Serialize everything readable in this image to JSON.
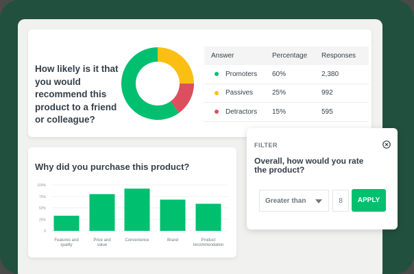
{
  "colors": {
    "background": "#21503e",
    "frame": "#f1f1f0",
    "brand_green": "#00bf6f",
    "promoters": "#00bf6f",
    "passives": "#fbbf13",
    "detractors": "#dc4f5e",
    "text_dark": "#333e48",
    "text_muted": "#6b787f"
  },
  "nps": {
    "question": "How likely is it that you would recommend this product to a friend or colleague?",
    "table": {
      "headers": [
        "Answer",
        "Percentage",
        "Responses"
      ],
      "rows": [
        {
          "answer": "Promoters",
          "percentage": "60%",
          "responses": "2,380",
          "color": "#00bf6f"
        },
        {
          "answer": "Passives",
          "percentage": "25%",
          "responses": "992",
          "color": "#fbbf13"
        },
        {
          "answer": "Detractors",
          "percentage": "15%",
          "responses": "595",
          "color": "#dc4f5e"
        }
      ]
    }
  },
  "purchase": {
    "title": "Why did you purchase this product?"
  },
  "filter": {
    "label": "FILTER",
    "close_icon": "circle-x-icon",
    "question": "Overall, how would you rate the product?",
    "operator": "Greater than",
    "value": "8",
    "apply_label": "APPLY"
  },
  "chart_data": [
    {
      "type": "pie",
      "title": "How likely is it that you would recommend this product to a friend or colleague?",
      "categories": [
        "Promoters",
        "Passives",
        "Detractors"
      ],
      "values": [
        60,
        25,
        15
      ],
      "colors": [
        "#00bf6f",
        "#fbbf13",
        "#dc4f5e"
      ],
      "donut": true
    },
    {
      "type": "bar",
      "title": "Why did you purchase this product?",
      "categories": [
        "Features and quality",
        "Price and value",
        "Convenience",
        "Brand",
        "Product recommendation"
      ],
      "values": [
        33,
        80,
        92,
        68,
        59
      ],
      "yticks": [
        "0",
        "25%",
        "50%",
        "75%",
        "100%"
      ],
      "ylim": [
        0,
        100
      ],
      "xlabel": "",
      "ylabel": "",
      "grid": true,
      "color": "#00bf6f"
    }
  ]
}
